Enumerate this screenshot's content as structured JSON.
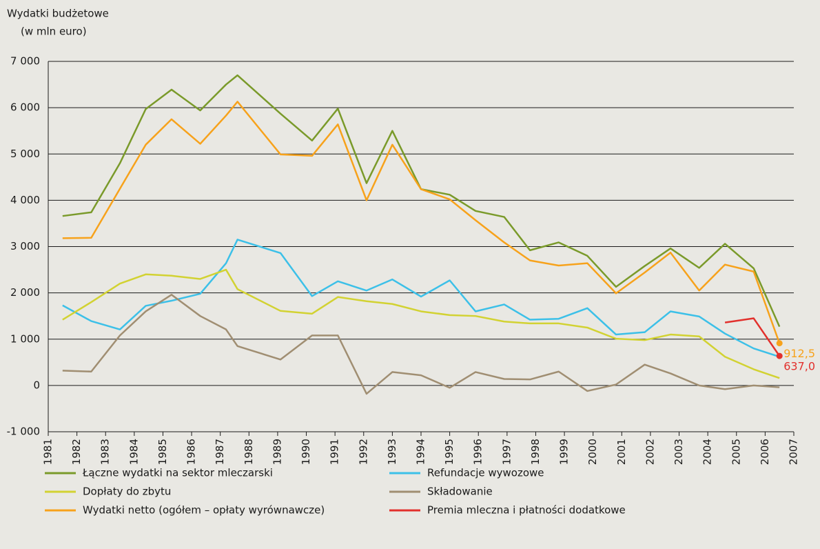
{
  "chart_data": {
    "type": "line",
    "title": "Wydatki budżetowe",
    "subtitle": "(w mln euro)",
    "x": [
      1981.5,
      1982.5,
      1983.5,
      1984.4,
      1985.3,
      1986.3,
      1987.2,
      1987.6,
      1989.1,
      1990.2,
      1991.1,
      1992.1,
      1993.0,
      1994.0,
      1995.0,
      1995.9,
      1996.9,
      1997.8,
      1998.8,
      1999.8,
      2000.8,
      2001.8,
      2002.7,
      2003.7,
      2004.6,
      2005.6,
      2006.5
    ],
    "series": [
      {
        "name": "Łączne wydatki na sektor mleczarski",
        "color": "#7a9a2a",
        "values": [
          3660,
          3740,
          4800,
          5970,
          6390,
          5940,
          6500,
          6700,
          5870,
          5290,
          5980,
          4370,
          5500,
          4240,
          4120,
          3770,
          3640,
          2920,
          3090,
          2800,
          2130,
          2580,
          2960,
          2540,
          3060,
          2530,
          1270
        ]
      },
      {
        "name": "Refundacje wywozowe",
        "color": "#3cc0e8",
        "values": [
          1730,
          1390,
          1210,
          1720,
          1830,
          1980,
          2640,
          3150,
          2860,
          1930,
          2250,
          2050,
          2290,
          1920,
          2270,
          1600,
          1750,
          1420,
          1440,
          1670,
          1100,
          1150,
          1600,
          1490,
          1120,
          800,
          620
        ]
      },
      {
        "name": "Dopłaty do zbytu",
        "color": "#d2d232",
        "values": [
          1420,
          1800,
          2200,
          2400,
          2370,
          2300,
          2500,
          2080,
          1610,
          1550,
          1910,
          1820,
          1760,
          1600,
          1520,
          1500,
          1380,
          1340,
          1340,
          1250,
          1010,
          980,
          1100,
          1060,
          620,
          350,
          160
        ]
      },
      {
        "name": "Składowanie",
        "color": "#a08e72",
        "values": [
          320,
          300,
          1080,
          1600,
          1960,
          1500,
          1210,
          850,
          560,
          1080,
          1080,
          -180,
          290,
          220,
          -50,
          290,
          140,
          130,
          300,
          -120,
          20,
          450,
          260,
          0,
          -80,
          0,
          -40
        ]
      },
      {
        "name": "Wydatki netto (ogółem – opłaty wyrównawcze)",
        "color": "#f7a21b",
        "values": [
          3180,
          3190,
          4250,
          5200,
          5750,
          5220,
          5830,
          6130,
          4990,
          4960,
          5640,
          4000,
          5200,
          4240,
          4020,
          3570,
          3090,
          2700,
          2590,
          2640,
          1990,
          2440,
          2870,
          2050,
          2610,
          2460,
          912.5
        ],
        "value_labels": [
          null,
          null,
          null,
          null,
          null,
          null,
          null,
          null,
          null,
          null,
          null,
          null,
          null,
          null,
          null,
          null,
          null,
          null,
          null,
          null,
          null,
          null,
          null,
          null,
          null,
          null,
          "912,5"
        ]
      },
      {
        "name": "Premia mleczna i płatności dodatkowe",
        "color": "#e2302c",
        "values": [
          null,
          null,
          null,
          null,
          null,
          null,
          null,
          null,
          null,
          null,
          null,
          null,
          null,
          null,
          null,
          null,
          null,
          null,
          null,
          null,
          null,
          null,
          null,
          null,
          1360,
          1450,
          637.0
        ],
        "value_labels": [
          null,
          null,
          null,
          null,
          null,
          null,
          null,
          null,
          null,
          null,
          null,
          null,
          null,
          null,
          null,
          null,
          null,
          null,
          null,
          null,
          null,
          null,
          null,
          null,
          null,
          null,
          "637,0"
        ]
      }
    ],
    "xlim": [
      1981,
      2007
    ],
    "xticks": [
      1981,
      1982,
      1983,
      1984,
      1985,
      1986,
      1987,
      1988,
      1989,
      1990,
      1991,
      1992,
      1993,
      1994,
      1995,
      1996,
      1997,
      1998,
      1999,
      2000,
      2001,
      2002,
      2003,
      2004,
      2005,
      2006,
      2007
    ],
    "ylim": [
      -1000,
      7000
    ],
    "yticks": [
      {
        "value": -1000,
        "label": "-1 000"
      },
      0,
      {
        "value": 1000,
        "label": "1 000"
      },
      {
        "value": 2000,
        "label": "2 000"
      },
      {
        "value": 3000,
        "label": "3 000"
      },
      {
        "value": 4000,
        "label": "4 000"
      },
      {
        "value": 5000,
        "label": "5 000"
      },
      {
        "value": 6000,
        "label": "6 000"
      },
      {
        "value": 7000,
        "label": "7 000"
      }
    ],
    "grid": true,
    "legend": "bottom"
  }
}
